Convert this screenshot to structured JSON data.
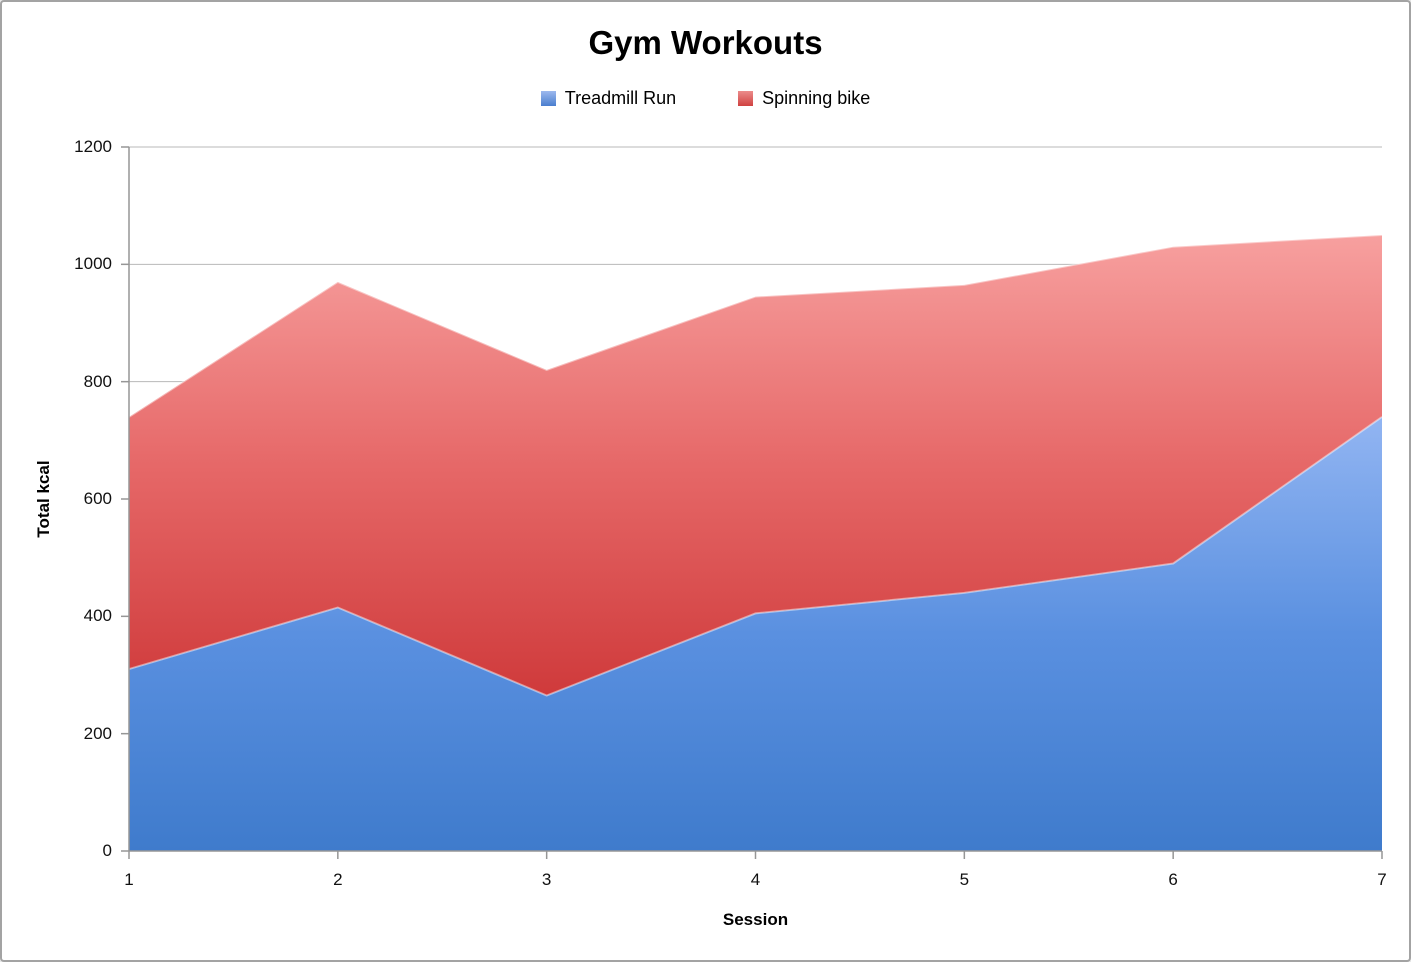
{
  "window": {
    "background": "#ffffff",
    "frame_border_color": "#a3a3a3"
  },
  "chart_data": {
    "type": "area",
    "stacked": true,
    "title": "Gym Workouts",
    "xlabel": "Session",
    "ylabel": "Total kcal",
    "categories": [
      "1",
      "2",
      "3",
      "4",
      "5",
      "6",
      "7"
    ],
    "series": [
      {
        "name": "Treadmill Run",
        "values": [
          310,
          415,
          265,
          405,
          440,
          490,
          740
        ],
        "fill_stops": [
          "#92b5f2",
          "#5a90e0",
          "#3f7bcc"
        ],
        "legend_fill": [
          "#9db9ee",
          "#4a7ecf"
        ]
      },
      {
        "name": "Spinning bike",
        "values": [
          430,
          555,
          555,
          540,
          525,
          540,
          310
        ],
        "fill_stops": [
          "#f7a09f",
          "#e66868",
          "#cf3a3b"
        ],
        "legend_fill": [
          "#ec8c8b",
          "#cf4241"
        ]
      }
    ],
    "stacked_totals": [
      740,
      970,
      820,
      945,
      965,
      1030,
      1050
    ],
    "ylim": [
      0,
      1200
    ],
    "yticks": [
      0,
      200,
      400,
      600,
      800,
      1000,
      1200
    ],
    "grid": true,
    "legend_position": "top",
    "axis_color": "#969696",
    "gridline_color": "#b8b8b8",
    "area_edge_highlight": "rgba(255,255,255,0.45)"
  }
}
